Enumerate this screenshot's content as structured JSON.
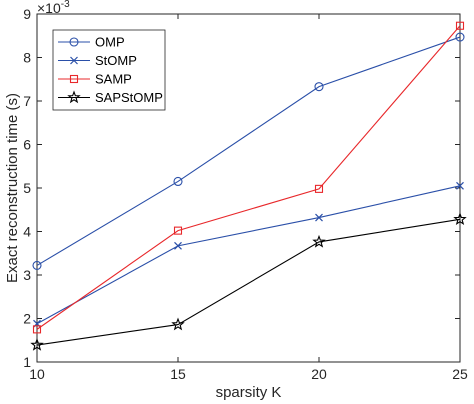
{
  "chart_data": {
    "type": "line",
    "xlabel": "sparsity K",
    "ylabel": "Exact reconstruction time (s)",
    "y_exponent_base": "×10",
    "y_exponent_power": "-3",
    "x": [
      10,
      15,
      20,
      25
    ],
    "xlim": [
      10,
      25
    ],
    "ylim": [
      1,
      9
    ],
    "x_ticks": [
      "10",
      "15",
      "20",
      "25"
    ],
    "y_ticks": [
      "1",
      "2",
      "3",
      "4",
      "5",
      "6",
      "7",
      "8",
      "9"
    ],
    "grid": false,
    "legend_position": "top-left",
    "series": [
      {
        "name": "OMP",
        "values": [
          3.22,
          5.15,
          7.33,
          8.47
        ],
        "color": "#2a4fa8",
        "marker": "circle"
      },
      {
        "name": "StOMP",
        "values": [
          1.88,
          3.67,
          4.32,
          5.05
        ],
        "color": "#2a4fa8",
        "marker": "x"
      },
      {
        "name": "SAMP",
        "values": [
          1.75,
          4.02,
          4.98,
          8.73
        ],
        "color": "#e8282b",
        "marker": "square"
      },
      {
        "name": "SAPStOMP",
        "values": [
          1.39,
          1.86,
          3.76,
          4.28
        ],
        "color": "#000000",
        "marker": "star"
      }
    ]
  }
}
